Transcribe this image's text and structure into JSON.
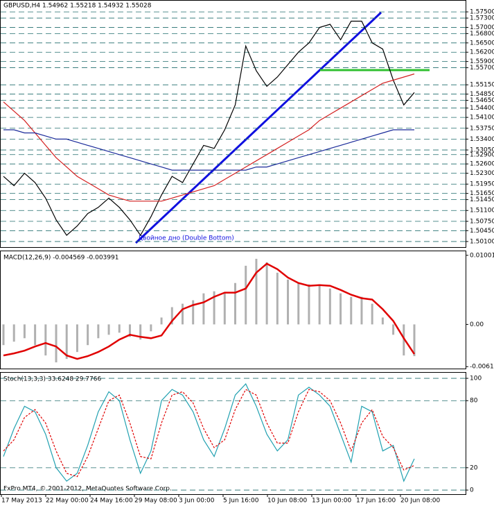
{
  "chart_data": [
    {
      "type": "line",
      "title": "GBPUSD,H4 1.54962 1.55218 1.54932 1.55028",
      "annotation": "Двойное дно (Double Bottom)",
      "ylim": [
        1.4992,
        1.5786
      ],
      "yticks": [
        {
          "value": 1.575,
          "label": "1.57500"
        },
        {
          "value": 1.573,
          "label": "1.57300"
        },
        {
          "value": 1.57,
          "label": "1.57000"
        },
        {
          "value": 1.568,
          "label": "1.56800"
        },
        {
          "value": 1.565,
          "label": "1.56500"
        },
        {
          "value": 1.562,
          "label": "1.56200"
        },
        {
          "value": 1.559,
          "label": "1.55900"
        },
        {
          "value": 1.557,
          "label": "1.55700"
        },
        {
          "value": 1.5515,
          "label": "1.55150"
        },
        {
          "value": 1.5485,
          "label": "1.54850"
        },
        {
          "value": 1.5465,
          "label": "1.54650"
        },
        {
          "value": 1.544,
          "label": "1.54400"
        },
        {
          "value": 1.541,
          "label": "1.54100"
        },
        {
          "value": 1.5375,
          "label": "1.53750"
        },
        {
          "value": 1.534,
          "label": "1.53400"
        },
        {
          "value": 1.5305,
          "label": "1.53050"
        },
        {
          "value": 1.529,
          "label": "1.52900"
        },
        {
          "value": 1.526,
          "label": "1.52600"
        },
        {
          "value": 1.523,
          "label": "1.52300"
        },
        {
          "value": 1.5195,
          "label": "1.51950"
        },
        {
          "value": 1.5165,
          "label": "1.51650"
        },
        {
          "value": 1.5145,
          "label": "1.51450"
        },
        {
          "value": 1.511,
          "label": "1.51100"
        },
        {
          "value": 1.5075,
          "label": "1.50750"
        },
        {
          "value": 1.5045,
          "label": "1.50450"
        },
        {
          "value": 1.501,
          "label": "1.50100"
        }
      ],
      "grid": true,
      "series": [
        {
          "color": "#000000",
          "values": [
            1.522,
            1.519,
            1.523,
            1.52,
            1.515,
            1.508,
            1.503,
            1.506,
            1.51,
            1.512,
            1.515,
            1.512,
            1.508,
            1.503,
            1.509,
            1.516,
            1.522,
            1.52,
            1.526,
            1.532,
            1.531,
            1.537,
            1.545,
            1.564,
            1.556,
            1.551,
            1.554,
            1.558,
            1.562,
            1.565,
            1.57,
            1.571,
            1.566,
            1.572,
            1.572,
            1.565,
            1.563,
            1.553,
            1.545,
            1.549
          ]
        },
        {
          "color": "#d42020",
          "values": [
            1.546,
            1.543,
            1.54,
            1.536,
            1.532,
            1.528,
            1.525,
            1.522,
            1.52,
            1.518,
            1.516,
            1.515,
            1.514,
            1.514,
            1.514,
            1.514,
            1.515,
            1.516,
            1.517,
            1.518,
            1.519,
            1.521,
            1.523,
            1.525,
            1.527,
            1.529,
            1.531,
            1.533,
            1.535,
            1.537,
            1.54,
            1.542,
            1.544,
            1.546,
            1.548,
            1.55,
            1.552,
            1.553,
            1.554,
            1.555
          ]
        },
        {
          "color": "#1a2a9a",
          "values": [
            1.537,
            1.537,
            1.536,
            1.536,
            1.535,
            1.534,
            1.534,
            1.533,
            1.532,
            1.531,
            1.53,
            1.529,
            1.528,
            1.527,
            1.526,
            1.525,
            1.524,
            1.524,
            1.524,
            1.524,
            1.524,
            1.524,
            1.524,
            1.524,
            1.525,
            1.525,
            1.526,
            1.527,
            1.528,
            1.529,
            1.53,
            1.531,
            1.532,
            1.533,
            1.534,
            1.535,
            1.536,
            1.537,
            1.537,
            1.537
          ]
        }
      ]
    },
    {
      "type": "macd",
      "title": "MACD(12,26,9) -0.004569 -0.003991",
      "ylim": [
        -0.0064,
        0.0106
      ],
      "yticks": [
        0.010013,
        {
          "value": 0,
          "label": "0.00"
        },
        -0.00612
      ],
      "series": [
        {
          "color": "#b0b0b0",
          "values": [
            -0.003,
            -0.0025,
            -0.002,
            -0.003,
            -0.0045,
            -0.0055,
            -0.005,
            -0.004,
            -0.003,
            -0.002,
            -0.0015,
            -0.0012,
            -0.0018,
            -0.0022,
            -0.001,
            0.001,
            0.0025,
            0.003,
            0.0035,
            0.0045,
            0.0048,
            0.0046,
            0.006,
            0.0085,
            0.0095,
            0.009,
            0.0075,
            0.0065,
            0.006,
            0.0058,
            0.0058,
            0.0052,
            0.0045,
            0.004,
            0.004,
            0.003,
            0.001,
            -0.0015,
            -0.0045,
            -0.0046
          ]
        },
        {
          "color": "#e00000",
          "values": [
            -0.0045,
            -0.0042,
            -0.0038,
            -0.0032,
            -0.0027,
            -0.0032,
            -0.0045,
            -0.005,
            -0.0046,
            -0.004,
            -0.0032,
            -0.0022,
            -0.0015,
            -0.0018,
            -0.002,
            -0.0016,
            0.0005,
            0.0022,
            0.0028,
            0.0032,
            0.004,
            0.0046,
            0.0046,
            0.0052,
            0.0075,
            0.0088,
            0.008,
            0.0068,
            0.006,
            0.0056,
            0.0057,
            0.0056,
            0.005,
            0.0043,
            0.0038,
            0.0036,
            0.0022,
            0.0005,
            -0.002,
            -0.0043
          ]
        }
      ]
    },
    {
      "type": "line",
      "title": "Stoch(13,3,3) 33.6248 29.7766",
      "footer": "FxPro MT4, © 2001-2012, MetaQuotes Software Corp.",
      "ylim": [
        -3.7,
        105
      ],
      "yticks": [
        100,
        80,
        20,
        0
      ],
      "grid": true,
      "series": [
        {
          "color": "#20a0b0",
          "values": [
            30,
            55,
            75,
            70,
            50,
            20,
            8,
            15,
            40,
            70,
            88,
            80,
            45,
            15,
            35,
            80,
            90,
            85,
            70,
            45,
            30,
            55,
            85,
            95,
            75,
            50,
            35,
            45,
            85,
            92,
            85,
            75,
            50,
            25,
            75,
            70,
            35,
            40,
            8,
            28
          ]
        },
        {
          "color": "#e00000",
          "dash": true,
          "values": [
            35,
            45,
            65,
            72,
            60,
            35,
            15,
            12,
            30,
            55,
            80,
            85,
            60,
            30,
            28,
            60,
            85,
            88,
            78,
            55,
            38,
            45,
            72,
            90,
            85,
            60,
            42,
            42,
            70,
            90,
            88,
            80,
            60,
            35,
            60,
            72,
            48,
            38,
            18,
            22
          ]
        }
      ],
      "time_axis": [
        "17 May 2013",
        "22 May 00:00",
        "24 May 16:00",
        "29 May 08:00",
        "3 Jun 00:00",
        "5 Jun 16:00",
        "10 Jun 08:00",
        "13 Jun 00:00",
        "17 Jun 16:00",
        "20 Jun 08:00"
      ]
    }
  ]
}
